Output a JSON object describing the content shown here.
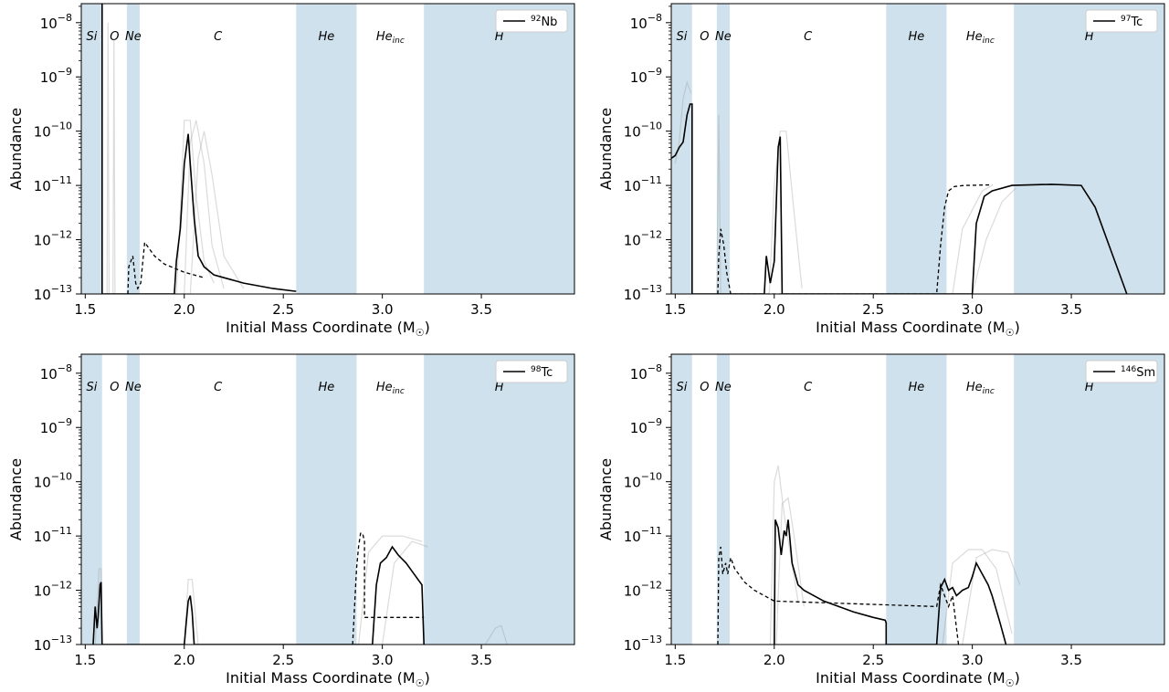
{
  "chart_data": [
    {
      "type": "line",
      "isotope_mass": "92",
      "isotope_symbol": "Nb",
      "xlabel": "Initial Mass Coordinate (M",
      "xlabel_sub": "☉",
      "xlabel_close": ")",
      "ylabel": "Abundance",
      "xlim": [
        1.48,
        3.97
      ],
      "ylim_log10": [
        -13,
        -7.65
      ],
      "yscale": "log",
      "legend": "top-right",
      "xticks": [
        1.5,
        2.0,
        2.5,
        3.0,
        3.5
      ],
      "xtick_labels": [
        "1.5",
        "2.0",
        "2.5",
        "3.0",
        "3.5"
      ],
      "yticks_log10": [
        -8,
        -9,
        -10,
        -11,
        -12,
        -13
      ],
      "zones": [
        {
          "label": "Si",
          "x0": 1.48,
          "x1": 1.585,
          "shaded": true
        },
        {
          "label": "O",
          "x0": 1.585,
          "x1": 1.71,
          "shaded": false
        },
        {
          "label": "Ne",
          "x0": 1.71,
          "x1": 1.775,
          "shaded": true
        },
        {
          "label": "C",
          "x0": 1.775,
          "x1": 2.565,
          "shaded": false
        },
        {
          "label": "He",
          "x0": 2.565,
          "x1": 2.87,
          "shaded": true
        },
        {
          "label": "He",
          "label_sub": "inc",
          "x0": 2.87,
          "x1": 3.21,
          "shaded": false
        },
        {
          "label": "H",
          "x0": 3.21,
          "x1": 3.97,
          "shaded": true
        }
      ],
      "series_solid": {
        "x": [
          1.585,
          1.585,
          1.95,
          1.96,
          1.98,
          2.0,
          2.02,
          2.03,
          2.05,
          2.07,
          2.1,
          2.15,
          2.3,
          2.45,
          2.56,
          2.565
        ],
        "y_log10": [
          -7.65,
          -13,
          -13,
          -12.4,
          -11.8,
          -10.6,
          -10.05,
          -10.6,
          -11.6,
          -12.3,
          -12.5,
          -12.65,
          -12.8,
          -12.9,
          -12.95,
          -12.95
        ]
      },
      "series_dashed": {
        "x": [
          1.715,
          1.72,
          1.73,
          1.74,
          1.755,
          1.765,
          1.78,
          1.8,
          1.85,
          1.9,
          2.0,
          2.1
        ],
        "y_log10": [
          -13,
          -12.5,
          -12.4,
          -12.3,
          -12.8,
          -12.9,
          -12.8,
          -12.05,
          -12.3,
          -12.45,
          -12.6,
          -12.7
        ]
      },
      "series_faint": [
        {
          "x": [
            1.96,
            1.98,
            2.0,
            2.03,
            2.06,
            2.1,
            2.15
          ],
          "y_log10": [
            -13,
            -11.5,
            -9.8,
            -9.8,
            -11.2,
            -12.4,
            -12.8
          ]
        },
        {
          "x": [
            2.0,
            2.03,
            2.06,
            2.1,
            2.14,
            2.2
          ],
          "y_log10": [
            -13,
            -10.2,
            -9.8,
            -10.6,
            -12.1,
            -12.9
          ]
        },
        {
          "x": [
            2.03,
            2.07,
            2.1,
            2.14,
            2.2,
            2.3
          ],
          "y_log10": [
            -13,
            -10.5,
            -10.0,
            -10.8,
            -12.3,
            -12.9
          ]
        },
        {
          "x": [
            1.61,
            1.615,
            1.62
          ],
          "y_log10": [
            -13,
            -8,
            -13
          ]
        },
        {
          "x": [
            1.64,
            1.645,
            1.65
          ],
          "y_log10": [
            -13,
            -8.3,
            -13
          ]
        }
      ]
    },
    {
      "type": "line",
      "isotope_mass": "97",
      "isotope_symbol": "Tc",
      "xlabel": "Initial Mass Coordinate (M",
      "xlabel_sub": "☉",
      "xlabel_close": ")",
      "ylabel": "Abundance",
      "xlim": [
        1.48,
        3.97
      ],
      "ylim_log10": [
        -13,
        -7.65
      ],
      "yscale": "log",
      "legend": "top-right",
      "xticks": [
        1.5,
        2.0,
        2.5,
        3.0,
        3.5
      ],
      "xtick_labels": [
        "1.5",
        "2.0",
        "2.5",
        "3.0",
        "3.5"
      ],
      "yticks_log10": [
        -8,
        -9,
        -10,
        -11,
        -12,
        -13
      ],
      "zones": [
        {
          "label": "Si",
          "x0": 1.48,
          "x1": 1.585,
          "shaded": true
        },
        {
          "label": "O",
          "x0": 1.585,
          "x1": 1.71,
          "shaded": false
        },
        {
          "label": "Ne",
          "x0": 1.71,
          "x1": 1.775,
          "shaded": true
        },
        {
          "label": "C",
          "x0": 1.775,
          "x1": 2.565,
          "shaded": false
        },
        {
          "label": "He",
          "x0": 2.565,
          "x1": 2.87,
          "shaded": true
        },
        {
          "label": "He",
          "label_sub": "inc",
          "x0": 2.87,
          "x1": 3.21,
          "shaded": false
        },
        {
          "label": "H",
          "x0": 3.21,
          "x1": 3.97,
          "shaded": true
        }
      ],
      "series_solid": {
        "x": [
          1.48,
          1.5,
          1.52,
          1.54,
          1.56,
          1.575,
          1.585,
          1.585,
          1.95,
          1.96,
          1.98,
          2.0,
          2.02,
          2.03,
          2.04,
          3.0,
          3.02,
          3.06,
          3.1,
          3.2,
          3.4,
          3.55,
          3.62,
          3.7,
          3.76,
          3.78
        ],
        "y_log10": [
          -10.5,
          -10.45,
          -10.3,
          -10.2,
          -9.7,
          -9.5,
          -9.5,
          -13,
          -13,
          -12.3,
          -12.8,
          -12.4,
          -10.3,
          -10.1,
          -13,
          -13,
          -11.7,
          -11.2,
          -11.1,
          -11.0,
          -10.98,
          -11.0,
          -11.4,
          -12.2,
          -12.8,
          -13
        ]
      },
      "series_dashed": {
        "x": [
          1.715,
          1.72,
          1.73,
          1.745,
          1.76,
          1.78,
          2.82,
          2.84,
          2.86,
          2.88,
          2.91,
          2.96,
          3.1
        ],
        "y_log10": [
          -13,
          -12.3,
          -11.8,
          -12.1,
          -12.6,
          -13,
          -13,
          -12.1,
          -11.4,
          -11.1,
          -11.02,
          -11.0,
          -10.99
        ]
      },
      "series_faint": [
        {
          "x": [
            1.5,
            1.52,
            1.54,
            1.56,
            1.58
          ],
          "y_log10": [
            -10.6,
            -10.2,
            -9.4,
            -9.1,
            -9.3
          ]
        },
        {
          "x": [
            1.975,
            2.0,
            2.03,
            2.06,
            2.1,
            2.14
          ],
          "y_log10": [
            -13,
            -11.0,
            -10.0,
            -10.0,
            -11.5,
            -12.9
          ]
        },
        {
          "x": [
            2.9,
            2.95,
            3.05,
            3.1
          ],
          "y_log10": [
            -13,
            -11.8,
            -11.1,
            -11.0
          ]
        },
        {
          "x": [
            3.0,
            3.07,
            3.15,
            3.22
          ],
          "y_log10": [
            -13,
            -12.0,
            -11.3,
            -11.05
          ]
        },
        {
          "x": [
            1.71,
            1.72,
            1.73
          ],
          "y_log10": [
            -13,
            -9.7,
            -13
          ]
        }
      ]
    },
    {
      "type": "line",
      "isotope_mass": "98",
      "isotope_symbol": "Tc",
      "xlabel": "Initial Mass Coordinate (M",
      "xlabel_sub": "☉",
      "xlabel_close": ")",
      "ylabel": "Abundance",
      "xlim": [
        1.48,
        3.97
      ],
      "ylim_log10": [
        -13,
        -7.65
      ],
      "yscale": "log",
      "legend": "top-right",
      "xticks": [
        1.5,
        2.0,
        2.5,
        3.0,
        3.5
      ],
      "xtick_labels": [
        "1.5",
        "2.0",
        "2.5",
        "3.0",
        "3.5"
      ],
      "yticks_log10": [
        -8,
        -9,
        -10,
        -11,
        -12,
        -13
      ],
      "zones": [
        {
          "label": "Si",
          "x0": 1.48,
          "x1": 1.585,
          "shaded": true
        },
        {
          "label": "O",
          "x0": 1.585,
          "x1": 1.71,
          "shaded": false
        },
        {
          "label": "Ne",
          "x0": 1.71,
          "x1": 1.775,
          "shaded": true
        },
        {
          "label": "C",
          "x0": 1.775,
          "x1": 2.565,
          "shaded": false
        },
        {
          "label": "He",
          "x0": 2.565,
          "x1": 2.87,
          "shaded": true
        },
        {
          "label": "He",
          "label_sub": "inc",
          "x0": 2.87,
          "x1": 3.21,
          "shaded": false
        },
        {
          "label": "H",
          "x0": 3.21,
          "x1": 3.97,
          "shaded": true
        }
      ],
      "series_solid": {
        "x": [
          1.54,
          1.55,
          1.56,
          1.565,
          1.575,
          1.58,
          1.585,
          2.0,
          2.01,
          2.02,
          2.03,
          2.04,
          2.05,
          2.95,
          2.97,
          2.99,
          3.02,
          3.05,
          3.08,
          3.12,
          3.16,
          3.2,
          3.21
        ],
        "y_log10": [
          -13,
          -12.3,
          -12.7,
          -12.5,
          -11.9,
          -11.85,
          -13,
          -13,
          -12.6,
          -12.2,
          -12.1,
          -12.4,
          -13,
          -13,
          -11.9,
          -11.5,
          -11.4,
          -11.2,
          -11.35,
          -11.5,
          -11.7,
          -11.9,
          -13
        ]
      },
      "series_dashed": {
        "x": [
          2.85,
          2.87,
          2.88,
          2.89,
          2.9,
          2.91,
          2.91,
          3.21
        ],
        "y_log10": [
          -13,
          -11.6,
          -11.2,
          -10.95,
          -10.95,
          -11.1,
          -12.5,
          -12.5
        ]
      },
      "series_faint": [
        {
          "x": [
            1.55,
            1.57,
            1.58,
            1.585
          ],
          "y_log10": [
            -13,
            -11.6,
            -11.6,
            -13
          ]
        },
        {
          "x": [
            2.0,
            2.02,
            2.04,
            2.07
          ],
          "y_log10": [
            -13,
            -11.8,
            -11.8,
            -13
          ]
        },
        {
          "x": [
            2.88,
            2.93,
            3.0,
            3.1,
            3.2
          ],
          "y_log10": [
            -13,
            -11.3,
            -11.0,
            -11.0,
            -11.1
          ]
        },
        {
          "x": [
            3.0,
            3.06,
            3.15,
            3.23
          ],
          "y_log10": [
            -13,
            -11.5,
            -11.1,
            -11.2
          ]
        },
        {
          "x": [
            3.52,
            3.57,
            3.6,
            3.63
          ],
          "y_log10": [
            -13,
            -12.7,
            -12.65,
            -13
          ]
        }
      ]
    },
    {
      "type": "line",
      "isotope_mass": "146",
      "isotope_symbol": "Sm",
      "xlabel": "Initial Mass Coordinate (M",
      "xlabel_sub": "☉",
      "xlabel_close": ")",
      "ylabel": "Abundance",
      "xlim": [
        1.48,
        3.97
      ],
      "ylim_log10": [
        -13,
        -7.65
      ],
      "yscale": "log",
      "legend": "top-right",
      "xticks": [
        1.5,
        2.0,
        2.5,
        3.0,
        3.5
      ],
      "xtick_labels": [
        "1.5",
        "2.0",
        "2.5",
        "3.0",
        "3.5"
      ],
      "yticks_log10": [
        -8,
        -9,
        -10,
        -11,
        -12,
        -13
      ],
      "zones": [
        {
          "label": "Si",
          "x0": 1.48,
          "x1": 1.585,
          "shaded": true
        },
        {
          "label": "O",
          "x0": 1.585,
          "x1": 1.71,
          "shaded": false
        },
        {
          "label": "Ne",
          "x0": 1.71,
          "x1": 1.775,
          "shaded": true
        },
        {
          "label": "C",
          "x0": 1.775,
          "x1": 2.565,
          "shaded": false
        },
        {
          "label": "He",
          "x0": 2.565,
          "x1": 2.87,
          "shaded": true
        },
        {
          "label": "He",
          "label_sub": "inc",
          "x0": 2.87,
          "x1": 3.21,
          "shaded": false
        },
        {
          "label": "H",
          "x0": 3.21,
          "x1": 3.97,
          "shaded": true
        }
      ],
      "series_solid": {
        "x": [
          2.0,
          2.005,
          2.02,
          2.035,
          2.05,
          2.06,
          2.07,
          2.09,
          2.12,
          2.15,
          2.25,
          2.4,
          2.5,
          2.56,
          2.565,
          2.565,
          2.82,
          2.84,
          2.86,
          2.88,
          2.9,
          2.92,
          2.95,
          2.98,
          3.0,
          3.02,
          3.05,
          3.08,
          3.1,
          3.14,
          3.17
        ],
        "y_log10": [
          -13,
          -10.7,
          -10.85,
          -11.35,
          -10.9,
          -11.0,
          -10.7,
          -11.5,
          -11.9,
          -12.0,
          -12.2,
          -12.4,
          -12.5,
          -12.55,
          -12.6,
          -13,
          -13,
          -11.95,
          -11.8,
          -12.0,
          -11.95,
          -12.1,
          -12.0,
          -11.95,
          -11.75,
          -11.5,
          -11.7,
          -11.9,
          -12.1,
          -12.6,
          -13
        ]
      },
      "series_dashed": {
        "x": [
          1.715,
          1.72,
          1.73,
          1.74,
          1.755,
          1.765,
          1.78,
          1.8,
          1.85,
          1.9,
          2.0,
          2.82,
          2.84,
          2.86,
          2.88,
          2.9,
          2.93
        ],
        "y_log10": [
          -13,
          -11.4,
          -11.2,
          -11.7,
          -11.5,
          -11.7,
          -11.4,
          -11.6,
          -11.85,
          -12.0,
          -12.2,
          -12.3,
          -11.9,
          -12.1,
          -12.3,
          -12.1,
          -13
        ]
      },
      "series_faint": [
        {
          "x": [
            1.98,
            2.0,
            2.02,
            2.05,
            2.08,
            2.12
          ],
          "y_log10": [
            -13,
            -10.0,
            -9.7,
            -10.6,
            -11.3,
            -12.2
          ]
        },
        {
          "x": [
            2.01,
            2.04,
            2.07,
            2.1,
            2.15
          ],
          "y_log10": [
            -13,
            -10.4,
            -10.3,
            -11.0,
            -12.3
          ]
        },
        {
          "x": [
            2.85,
            2.9,
            2.98,
            3.05,
            3.12,
            3.2
          ],
          "y_log10": [
            -13,
            -11.5,
            -11.25,
            -11.25,
            -11.6,
            -12.8
          ]
        },
        {
          "x": [
            2.95,
            3.02,
            3.1,
            3.18,
            3.24
          ],
          "y_log10": [
            -13,
            -11.4,
            -11.25,
            -11.3,
            -11.9
          ]
        }
      ]
    }
  ]
}
